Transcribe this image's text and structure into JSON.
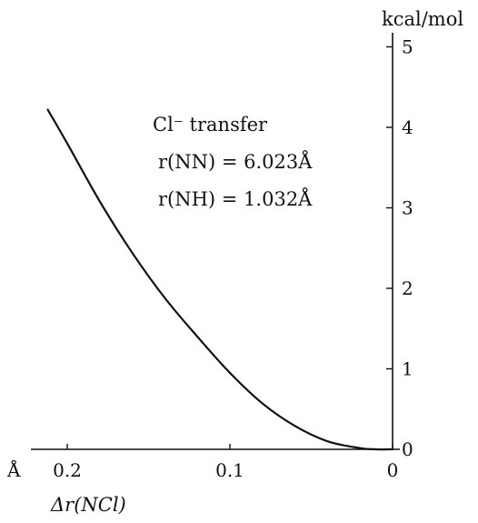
{
  "chart_data": {
    "type": "line",
    "title": "",
    "xlabel": "Δr(NCl)",
    "x_unit": "Å",
    "ylabel": "",
    "y_unit": "kcal/mol",
    "xlim": [
      0.22,
      0
    ],
    "ylim": [
      0,
      5.2
    ],
    "x_reversed": true,
    "x_ticks": [
      0.2,
      0.1,
      0
    ],
    "x_tick_labels": [
      "0.2",
      "0.1",
      "0"
    ],
    "y_ticks": [
      0,
      1,
      2,
      3,
      4,
      5
    ],
    "y_tick_labels": [
      "0",
      "1",
      "2",
      "3",
      "4",
      "5"
    ],
    "grid": false,
    "legend": "none",
    "annotations": {
      "line1": "Cl⁻ transfer",
      "line2": "r(NN) = 6.023Å",
      "line3": "r(NH) = 1.032Å"
    },
    "series": [
      {
        "x": [
          0.212,
          0.2,
          0.18,
          0.16,
          0.14,
          0.12,
          0.1,
          0.08,
          0.06,
          0.04,
          0.02,
          0.01,
          0.0
        ],
        "y": [
          4.22,
          3.8,
          3.08,
          2.44,
          1.88,
          1.4,
          0.95,
          0.57,
          0.29,
          0.1,
          0.015,
          0.0,
          0.0
        ]
      }
    ]
  },
  "colors": {
    "line": "#111111",
    "axis": "#111111",
    "background": "#ffffff"
  }
}
